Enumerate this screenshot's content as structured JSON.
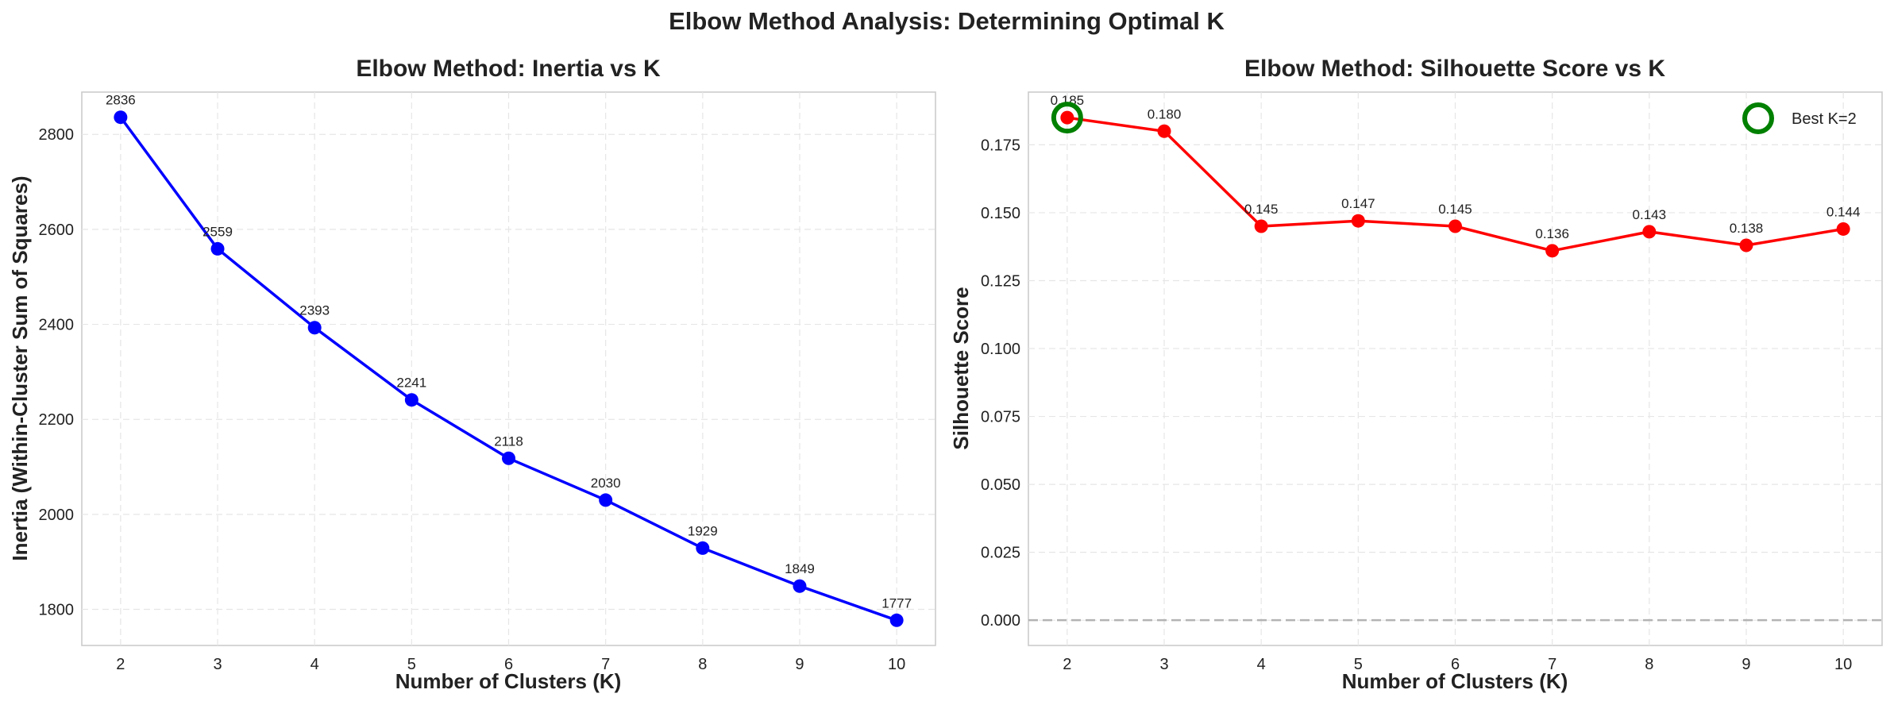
{
  "suptitle": "Elbow Method Analysis: Determining Optimal K",
  "colors": {
    "inertia": "#0000ff",
    "silhouette": "#ff0000",
    "best": "#008000",
    "zero_line": "#b3b3b3"
  },
  "chart_data": [
    {
      "type": "line",
      "title": "Elbow Method: Inertia vs K",
      "xlabel": "Number of Clusters (K)",
      "ylabel": "Inertia (Within-Cluster Sum of Squares)",
      "x": [
        2,
        3,
        4,
        5,
        6,
        7,
        8,
        9,
        10
      ],
      "values": [
        2836,
        2559,
        2393,
        2241,
        2118,
        2030,
        1929,
        1849,
        1777
      ],
      "data_labels": [
        "2836",
        "2559",
        "2393",
        "2241",
        "2118",
        "2030",
        "1929",
        "1849",
        "1777"
      ],
      "xlim": [
        1.6,
        10.4
      ],
      "ylim": [
        1724,
        2889
      ],
      "xticks": [
        2,
        3,
        4,
        5,
        6,
        7,
        8,
        9,
        10
      ],
      "yticks": [
        1800,
        2000,
        2200,
        2400,
        2600,
        2800
      ],
      "ytick_labels": [
        "1800",
        "2000",
        "2200",
        "2400",
        "2600",
        "2800"
      ],
      "grid": true
    },
    {
      "type": "line",
      "title": "Elbow Method: Silhouette Score vs K",
      "xlabel": "Number of Clusters (K)",
      "ylabel": "Silhouette Score",
      "x": [
        2,
        3,
        4,
        5,
        6,
        7,
        8,
        9,
        10
      ],
      "values": [
        0.185,
        0.18,
        0.145,
        0.147,
        0.145,
        0.136,
        0.143,
        0.138,
        0.144
      ],
      "data_labels": [
        "0.185",
        "0.180",
        "0.145",
        "0.147",
        "0.145",
        "0.136",
        "0.143",
        "0.138",
        "0.144"
      ],
      "xlim": [
        1.6,
        10.4
      ],
      "ylim": [
        -0.0093,
        0.1944
      ],
      "xticks": [
        2,
        3,
        4,
        5,
        6,
        7,
        8,
        9,
        10
      ],
      "yticks": [
        0.0,
        0.025,
        0.05,
        0.075,
        0.1,
        0.125,
        0.15,
        0.175
      ],
      "ytick_labels": [
        "0.000",
        "0.025",
        "0.050",
        "0.075",
        "0.100",
        "0.125",
        "0.150",
        "0.175"
      ],
      "reference_line_y": 0,
      "highlight": {
        "x": 2,
        "y": 0.185
      },
      "legend": {
        "label": "Best K=2",
        "placement": "upper right"
      },
      "grid": true
    }
  ]
}
